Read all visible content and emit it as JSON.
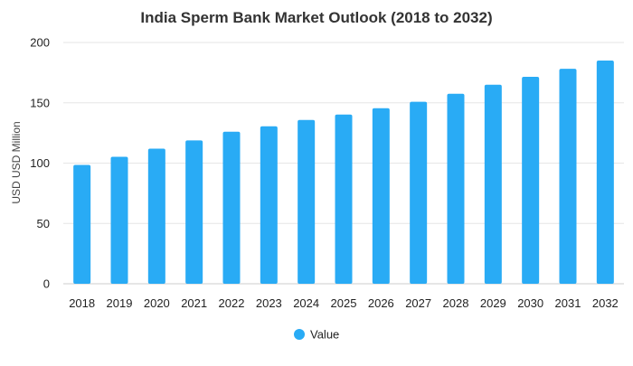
{
  "chart_data": {
    "type": "bar",
    "title": "India Sperm Bank Market Outlook (2018 to 2032)",
    "xlabel": "",
    "ylabel": "USD USD Million",
    "categories": [
      "2018",
      "2019",
      "2020",
      "2021",
      "2022",
      "2023",
      "2024",
      "2025",
      "2026",
      "2027",
      "2028",
      "2029",
      "2030",
      "2031",
      "2032"
    ],
    "series": [
      {
        "name": "Value",
        "color": "#29abf5",
        "values": [
          98.5,
          105.2,
          112.0,
          118.8,
          126.0,
          130.5,
          135.8,
          140.3,
          145.5,
          150.8,
          157.5,
          165.0,
          171.5,
          178.2,
          185.0
        ]
      }
    ],
    "ylim": [
      0,
      200
    ],
    "yticks": [
      0,
      50,
      100,
      150,
      200
    ],
    "grid": true,
    "legend_position": "bottom-center"
  }
}
